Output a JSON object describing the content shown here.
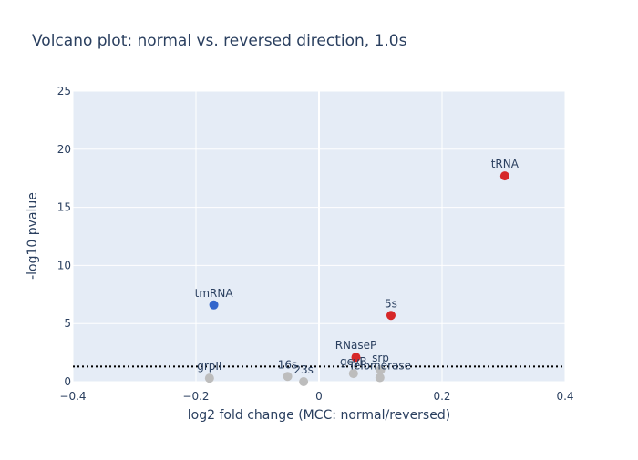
{
  "chart_data": {
    "type": "scatter",
    "title": "Volcano plot: normal vs. reversed direction, 1.0s",
    "xlabel": "log2 fold change (MCC: normal/reversed)",
    "ylabel": "-log10 pvalue",
    "xlim": [
      -0.4,
      0.4
    ],
    "ylim": [
      0,
      25
    ],
    "xticks": [
      -0.4,
      -0.2,
      0,
      0.2,
      0.4
    ],
    "yticks": [
      0,
      5,
      10,
      15,
      20,
      25
    ],
    "xtick_labels": [
      "−0.4",
      "−0.2",
      "0",
      "0.2",
      "0.4"
    ],
    "ytick_labels": [
      "0",
      "5",
      "10",
      "15",
      "20",
      "25"
    ],
    "grid": true,
    "background_color": "#e5ecf6",
    "significance_threshold": 1.3,
    "points": [
      {
        "label": "tRNA",
        "x": 0.302,
        "y": 17.7,
        "color": "#d62728"
      },
      {
        "label": "tmRNA",
        "x": -0.171,
        "y": 6.6,
        "color": "#3366cc"
      },
      {
        "label": "5s",
        "x": 0.117,
        "y": 5.7,
        "color": "#d62728"
      },
      {
        "label": "RNaseP",
        "x": 0.06,
        "y": 2.1,
        "color": "#d62728"
      },
      {
        "label": "srp",
        "x": 0.1,
        "y": 1.0,
        "color": "#bdbdbd"
      },
      {
        "label": "gcvB",
        "x": 0.056,
        "y": 0.7,
        "color": "#bdbdbd"
      },
      {
        "label": "Telomerase",
        "x": 0.099,
        "y": 0.35,
        "color": "#bdbdbd"
      },
      {
        "label": "16s",
        "x": -0.051,
        "y": 0.45,
        "color": "#bdbdbd"
      },
      {
        "label": "23s",
        "x": -0.025,
        "y": 0.0,
        "color": "#bdbdbd"
      },
      {
        "label": "grpII",
        "x": -0.178,
        "y": 0.3,
        "color": "#bdbdbd"
      }
    ]
  }
}
